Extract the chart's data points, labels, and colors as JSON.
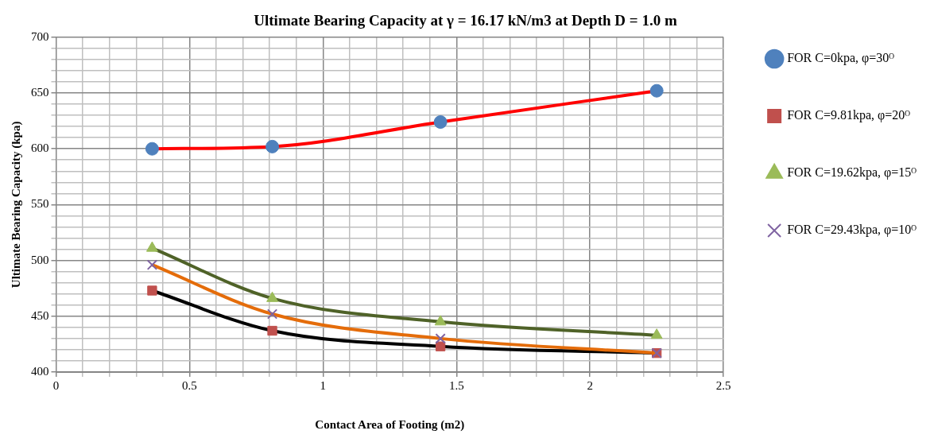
{
  "chart_data": {
    "type": "line",
    "title": "Ultimate Bearing Capacity at γ = 16.17 kN/m3 at Depth D = 1.0 m",
    "xlabel": "Contact Area of Footing (m2)",
    "ylabel": "Ultimate Bearing Capacity (kpa)",
    "x": [
      0.36,
      0.81,
      1.44,
      2.25
    ],
    "series": [
      {
        "name": "FOR C=0kpa, φ=30ᴼ",
        "color": "#ff0000",
        "colors": [
          "#4f81bd",
          "#4f81bd",
          "#4f81bd",
          "#4f81bd"
        ],
        "marker": "circle",
        "values": [
          600,
          602,
          624,
          652
        ]
      },
      {
        "name": "FOR C=9.81kpa, φ=20ᴼ",
        "color": "#000000",
        "colors": [
          "#c0504d",
          "#c0504d",
          "#c0504d",
          "#c0504d"
        ],
        "marker": "square",
        "values": [
          473,
          437,
          423,
          417
        ]
      },
      {
        "name": "FOR C=19.62kpa, φ=15ᴼ",
        "color": "#4f6228",
        "colors": [
          "#9bbb59",
          "#9bbb59",
          "#9bbb59",
          "#9bbb59"
        ],
        "marker": "triangle",
        "values": [
          511,
          466,
          445,
          433
        ]
      },
      {
        "name": "FOR C=29.43kpa, φ=10ᴼ",
        "color": "#e46c0a",
        "colors": [
          "#8064a2",
          "#8064a2",
          "#8064a2",
          "#8064a2"
        ],
        "marker": "cross",
        "values": [
          496,
          452,
          430,
          417
        ]
      }
    ],
    "xlim": [
      0,
      2.5
    ],
    "xticks": [
      0,
      {
        "value": 0.1,
        "label": null
      },
      {
        "value": 0.2,
        "label": null
      },
      {
        "value": 0.3,
        "label": null
      },
      {
        "value": 0.4,
        "label": null
      },
      0.5,
      {
        "value": 0.6,
        "label": null
      },
      {
        "value": 0.7,
        "label": null
      },
      {
        "value": 0.8,
        "label": null
      },
      {
        "value": 0.9,
        "label": null
      },
      1,
      {
        "value": 1.1,
        "label": null
      },
      {
        "value": 1.2,
        "label": null
      },
      {
        "value": 1.3,
        "label": null
      },
      {
        "value": 1.4,
        "label": null
      },
      1.5,
      {
        "value": 1.6,
        "label": null
      },
      {
        "value": 1.7,
        "label": null
      },
      {
        "value": 1.8,
        "label": null
      },
      {
        "value": 1.9,
        "label": null
      },
      2,
      {
        "value": 2.1,
        "label": null
      },
      {
        "value": 2.2,
        "label": null
      },
      {
        "value": 2.3,
        "label": null
      },
      {
        "value": 2.4,
        "label": null
      },
      2.5
    ],
    "ylim": [
      400,
      700
    ],
    "yticks": [
      400,
      {
        "value": 410,
        "label": null
      },
      {
        "value": 420,
        "label": null
      },
      {
        "value": 430,
        "label": null
      },
      {
        "value": 440,
        "label": null
      },
      450,
      {
        "value": 460,
        "label": null
      },
      {
        "value": 470,
        "label": null
      },
      {
        "value": 480,
        "label": null
      },
      {
        "value": 490,
        "label": null
      },
      500,
      {
        "value": 510,
        "label": null
      },
      {
        "value": 520,
        "label": null
      },
      {
        "value": 530,
        "label": null
      },
      {
        "value": 540,
        "label": null
      },
      550,
      {
        "value": 560,
        "label": null
      },
      {
        "value": 570,
        "label": null
      },
      {
        "value": 580,
        "label": null
      },
      {
        "value": 590,
        "label": null
      },
      600,
      {
        "value": 610,
        "label": null
      },
      {
        "value": 620,
        "label": null
      },
      {
        "value": 630,
        "label": null
      },
      {
        "value": 640,
        "label": null
      },
      650,
      {
        "value": 660,
        "label": null
      },
      {
        "value": 670,
        "label": null
      },
      {
        "value": 680,
        "label": null
      },
      {
        "value": 690,
        "label": null
      },
      700
    ],
    "grid": true,
    "legend": "right",
    "line_style": "solid"
  }
}
